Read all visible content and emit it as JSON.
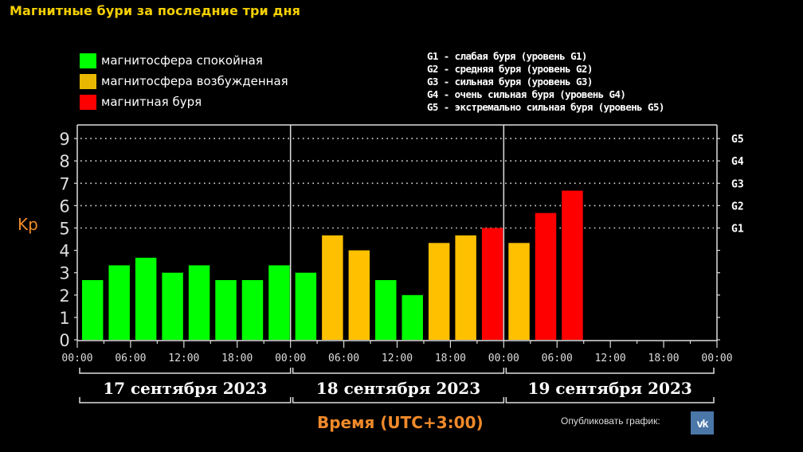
{
  "header": {
    "title": "Магнитные бури за последние три дня"
  },
  "legend": [
    {
      "label": "магнитосфера спокойная",
      "color": "#00ff00"
    },
    {
      "label": "магнитосфера возбужденная",
      "color": "#ffc000"
    },
    {
      "label": "магнитная буря",
      "color": "#ff0000"
    }
  ],
  "g_legend": [
    "G1 - слабая буря (уровень G1)",
    "G2 - средняя буря (уровень G2)",
    "G3 - сильная буря (уровень G3)",
    "G4 - очень сильная буря (уровень G4)",
    "G5 - экстремально сильная буря (уровень G5)"
  ],
  "axis": {
    "y_label": "Kp",
    "x_title": "Время (UTC+3:00)"
  },
  "footer": {
    "publish_label": "Опубликовать график:",
    "vk_label": "VK"
  },
  "chart_data": {
    "type": "bar",
    "title": "Магнитные бури за последние три дня",
    "xlabel": "Время (UTC+3:00)",
    "ylabel": "Kp",
    "ylim": [
      0,
      9
    ],
    "yticks": [
      0,
      1,
      2,
      3,
      4,
      5,
      6,
      7,
      8,
      9
    ],
    "right_ticks": [
      {
        "value": 5,
        "label": "G1"
      },
      {
        "value": 6,
        "label": "G2"
      },
      {
        "value": 7,
        "label": "G3"
      },
      {
        "value": 8,
        "label": "G4"
      },
      {
        "value": 9,
        "label": "G5"
      }
    ],
    "grid": "dotted horizontal at 5-9",
    "days": [
      "17 сентября 2023",
      "18 сентября 2023",
      "19 сентября 2023"
    ],
    "xtick_labels": [
      "00:00",
      "06:00",
      "12:00",
      "18:00",
      "00:00",
      "06:00",
      "12:00",
      "18:00",
      "00:00",
      "06:00",
      "12:00",
      "18:00",
      "00:00"
    ],
    "bars": [
      {
        "day": "17 сентября 2023",
        "time": "00:00-03:00",
        "kp": 2.67,
        "status": "calm"
      },
      {
        "day": "17 сентября 2023",
        "time": "03:00-06:00",
        "kp": 3.33,
        "status": "calm"
      },
      {
        "day": "17 сентября 2023",
        "time": "06:00-09:00",
        "kp": 3.67,
        "status": "calm"
      },
      {
        "day": "17 сентября 2023",
        "time": "09:00-12:00",
        "kp": 3.0,
        "status": "calm"
      },
      {
        "day": "17 сентября 2023",
        "time": "12:00-15:00",
        "kp": 3.33,
        "status": "calm"
      },
      {
        "day": "17 сентября 2023",
        "time": "15:00-18:00",
        "kp": 2.67,
        "status": "calm"
      },
      {
        "day": "17 сентября 2023",
        "time": "18:00-21:00",
        "kp": 2.67,
        "status": "calm"
      },
      {
        "day": "17 сентября 2023",
        "time": "21:00-24:00",
        "kp": 3.33,
        "status": "calm"
      },
      {
        "day": "18 сентября 2023",
        "time": "00:00-03:00",
        "kp": 3.0,
        "status": "calm"
      },
      {
        "day": "18 сентября 2023",
        "time": "03:00-06:00",
        "kp": 4.67,
        "status": "excited"
      },
      {
        "day": "18 сентября 2023",
        "time": "06:00-09:00",
        "kp": 4.0,
        "status": "excited"
      },
      {
        "day": "18 сентября 2023",
        "time": "09:00-12:00",
        "kp": 2.67,
        "status": "calm"
      },
      {
        "day": "18 сентября 2023",
        "time": "12:00-15:00",
        "kp": 2.0,
        "status": "calm"
      },
      {
        "day": "18 сентября 2023",
        "time": "15:00-18:00",
        "kp": 4.33,
        "status": "excited"
      },
      {
        "day": "18 сентября 2023",
        "time": "18:00-21:00",
        "kp": 4.67,
        "status": "excited"
      },
      {
        "day": "18 сентября 2023",
        "time": "21:00-24:00",
        "kp": 5.0,
        "status": "storm"
      },
      {
        "day": "19 сентября 2023",
        "time": "00:00-03:00",
        "kp": 4.33,
        "status": "excited"
      },
      {
        "day": "19 сентября 2023",
        "time": "03:00-06:00",
        "kp": 5.67,
        "status": "storm"
      },
      {
        "day": "19 сентября 2023",
        "time": "06:00-09:00",
        "kp": 6.67,
        "status": "storm"
      }
    ],
    "colors": {
      "calm": "#00ff00",
      "excited": "#ffc000",
      "storm": "#ff0000"
    }
  }
}
